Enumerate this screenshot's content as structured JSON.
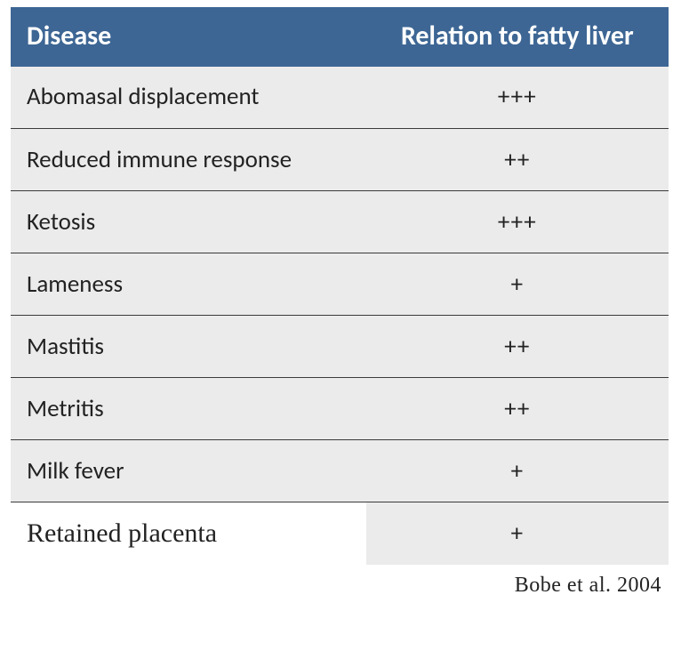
{
  "table": {
    "header_bg": "#3d6694",
    "header_fg": "#ffffff",
    "body_bg": "#ebebeb",
    "border_color": "#3a3a3a",
    "columns": [
      "Disease",
      "Relation to fatty liver"
    ],
    "rows": [
      {
        "disease": "Abomasal displacement",
        "relation": "+++"
      },
      {
        "disease": "Reduced immune response",
        "relation": "++"
      },
      {
        "disease": "Ketosis",
        "relation": "+++"
      },
      {
        "disease": "Lameness",
        "relation": "+"
      },
      {
        "disease": "Mastitis",
        "relation": "++"
      },
      {
        "disease": "Metritis",
        "relation": "++"
      },
      {
        "disease": "Milk fever",
        "relation": "+"
      },
      {
        "disease": "Retained placenta",
        "relation": "+"
      }
    ],
    "header_fontsize": 30,
    "cell_fontsize": 27,
    "lastrow_highlight_bg": "#ffffff"
  },
  "citation": "Bobe et al. 2004"
}
